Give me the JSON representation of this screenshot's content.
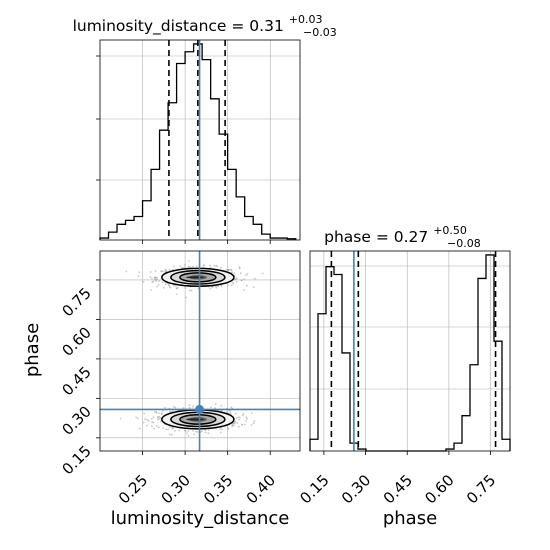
{
  "chart_data": {
    "type": "corner",
    "parameters": [
      "luminosity_distance",
      "phase"
    ],
    "truth": {
      "luminosity_distance": 0.317,
      "phase": 0.258
    },
    "colors": {
      "truth": "#4682b4",
      "hist": "#000000",
      "grid": "#b0b0b0",
      "scatter": "#9a9a9a"
    },
    "grid": true,
    "panels": [
      {
        "id": "hist_luminosity_distance",
        "type": "step-histogram",
        "title": {
          "base": "luminosity_distance = 0.31",
          "sup": "+0.03",
          "sub": "−0.03"
        },
        "xlim": [
          0.2,
          0.435
        ],
        "bins": {
          "edges_start": 0.2,
          "bin_width": 0.01,
          "counts": [
            0.5,
            2,
            4,
            5,
            6,
            10,
            18,
            28,
            35,
            45,
            48,
            50,
            46,
            36,
            27,
            18,
            11,
            6,
            4,
            1.5,
            0.5,
            0.5,
            0.3
          ]
        },
        "ymax": 51,
        "quantile_lines": [
          0.281,
          0.315,
          0.347
        ],
        "truth": 0.317
      },
      {
        "id": "hist_phase",
        "type": "step-histogram",
        "title": {
          "base": "phase = 0.27",
          "sup": "+0.50",
          "sub": "−0.08"
        },
        "xlim": [
          0.1,
          0.82
        ],
        "xlabel": "phase",
        "xticks": [
          "0.15",
          "0.30",
          "0.45",
          "0.60",
          "0.75"
        ],
        "bins": {
          "edges_start": 0.1,
          "bin_width": 0.0288,
          "counts": [
            3,
            35,
            47,
            45,
            25,
            2,
            0.5,
            0,
            0,
            0,
            0,
            0,
            0,
            0,
            0,
            0,
            0,
            0.5,
            2,
            9,
            22,
            44,
            50,
            28,
            3
          ]
        },
        "ymax": 51,
        "quantile_lines": [
          0.177,
          0.274,
          0.768
        ],
        "truth": 0.258
      },
      {
        "id": "joint_luminosity_distance_phase",
        "type": "2d-contour",
        "xlim": [
          0.2,
          0.435
        ],
        "ylim": [
          0.1,
          0.86
        ],
        "xlabel": "luminosity_distance",
        "ylabel": "phase",
        "xticks": [
          "0.25",
          "0.30",
          "0.35",
          "0.40"
        ],
        "yticks": [
          "0.15",
          "0.30",
          "0.45",
          "0.60",
          "0.75"
        ],
        "modes": [
          {
            "center": [
              0.315,
              0.76
            ],
            "sigma_x": 0.023,
            "sigma_y": 0.02,
            "contour_levels": [
              0.5,
              1.0,
              1.5,
              2.0
            ]
          },
          {
            "center": [
              0.315,
              0.22
            ],
            "sigma_x": 0.023,
            "sigma_y": 0.021,
            "contour_levels": [
              0.5,
              1.0,
              1.5,
              2.0
            ]
          }
        ],
        "truth_point": [
          0.317,
          0.258
        ]
      }
    ]
  }
}
